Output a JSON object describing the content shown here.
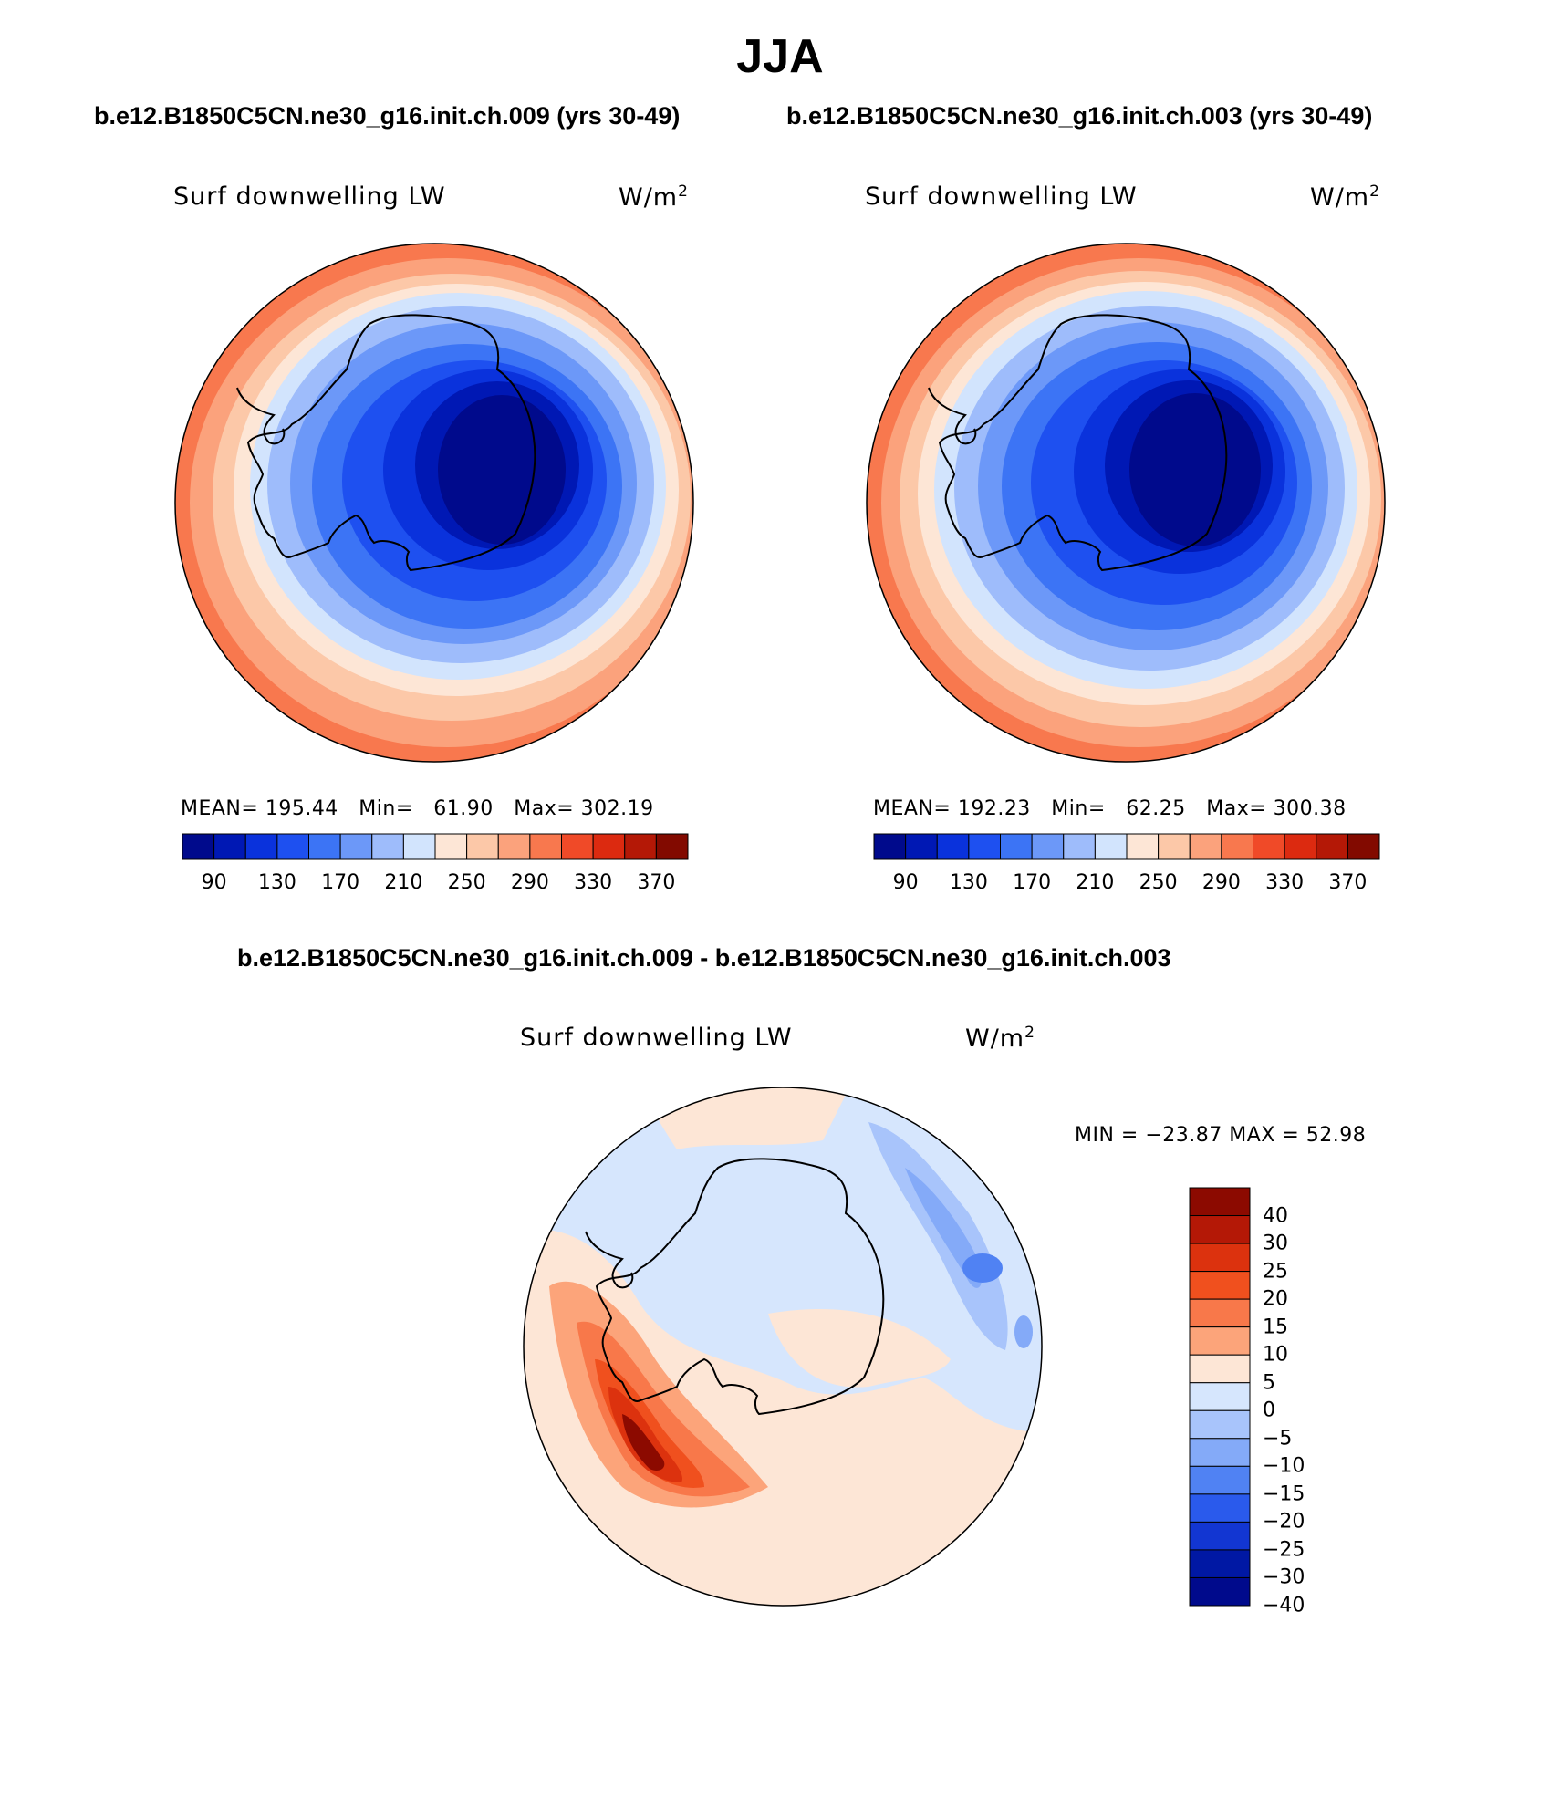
{
  "figure": {
    "title": "JJA",
    "left_case": "b.e12.B1850C5CN.ne30_g16.init.ch.009 (yrs 30-49)",
    "right_case": "b.e12.B1850C5CN.ne30_g16.init.ch.003 (yrs 30-49)",
    "diff_title": "b.e12.B1850C5CN.ne30_g16.init.ch.009 - b.e12.B1850C5CN.ne30_g16.init.ch.003"
  },
  "panels": {
    "left": {
      "variable": "Surf downwelling LW",
      "units": "W/m",
      "units_exp": "2",
      "mean_label": "MEAN=",
      "mean_value": "195.44",
      "min_label": "Min=",
      "min_value": "61.90",
      "max_label": "Max=",
      "max_value": "302.19"
    },
    "right": {
      "variable": "Surf downwelling LW",
      "units": "W/m",
      "units_exp": "2",
      "mean_label": "MEAN=",
      "mean_value": "192.23",
      "min_label": "Min=",
      "min_value": "62.25",
      "max_label": "Max=",
      "max_value": "300.38"
    },
    "diff": {
      "variable": "Surf downwelling LW",
      "units": "W/m",
      "units_exp": "2",
      "minmax": "MIN = −23.87  MAX =   52.98"
    }
  },
  "colorbars": {
    "absolute": {
      "colors": [
        "#000a8c",
        "#0018b4",
        "#0a32dc",
        "#1e50f0",
        "#3c74f5",
        "#6c98f8",
        "#9ebcfb",
        "#d2e4fd",
        "#fde6d6",
        "#fcc8a8",
        "#fba27c",
        "#f8784e",
        "#f04a28",
        "#dc2a10",
        "#b41806",
        "#820a00"
      ],
      "tick_labels": [
        "90",
        "130",
        "170",
        "210",
        "250",
        "290",
        "330",
        "370"
      ]
    },
    "difference": {
      "colors_top_to_bottom": [
        "#8c0a00",
        "#b41806",
        "#dc320e",
        "#f0501e",
        "#f8784a",
        "#fca47a",
        "#fde6d6",
        "#d6e6fd",
        "#a8c4fb",
        "#84aaf8",
        "#5082f3",
        "#2a5aec",
        "#1236d2",
        "#0018a4",
        "#000a8c"
      ],
      "tick_labels": [
        "40",
        "30",
        "25",
        "20",
        "15",
        "10",
        "5",
        "0",
        "−5",
        "−10",
        "−15",
        "−20",
        "−25",
        "−30",
        "−40"
      ]
    }
  }
}
